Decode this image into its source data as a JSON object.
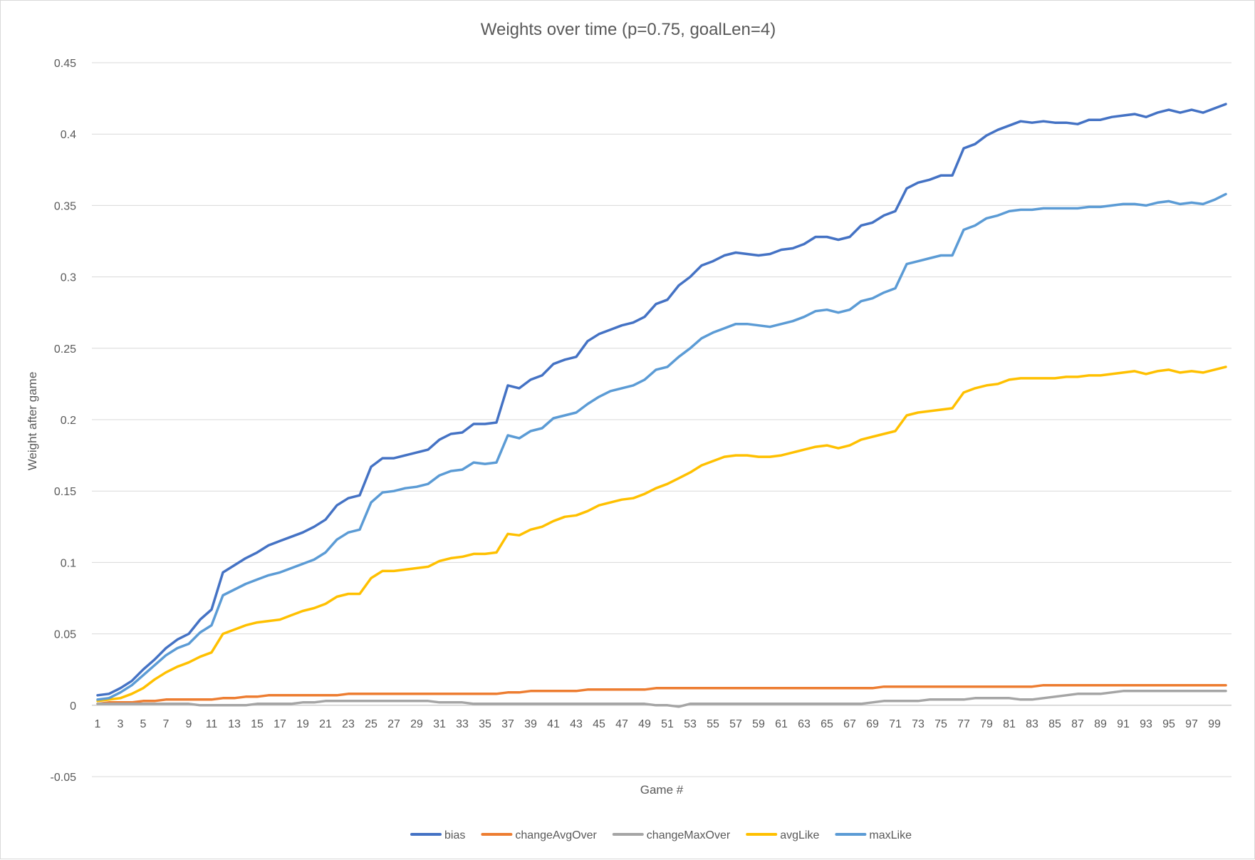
{
  "chart_data": {
    "type": "line",
    "title": "Weights over time (p=0.75, goalLen=4)",
    "xlabel": "Game #",
    "ylabel": "Weight after game",
    "ylim": [
      -0.05,
      0.45
    ],
    "y_ticks": [
      -0.05,
      0,
      0.05,
      0.1,
      0.15,
      0.2,
      0.25,
      0.3,
      0.35,
      0.4,
      0.45
    ],
    "y_tick_labels": [
      "-0.05",
      "0",
      "0.05",
      "0.1",
      "0.15",
      "0.2",
      "0.25",
      "0.3",
      "0.35",
      "0.4",
      "0.45"
    ],
    "x_tick_labels": [
      "1",
      "3",
      "5",
      "7",
      "9",
      "11",
      "13",
      "15",
      "17",
      "19",
      "21",
      "23",
      "25",
      "27",
      "29",
      "31",
      "33",
      "35",
      "37",
      "39",
      "41",
      "43",
      "45",
      "47",
      "49",
      "51",
      "53",
      "55",
      "57",
      "59",
      "61",
      "63",
      "65",
      "67",
      "69",
      "71",
      "73",
      "75",
      "77",
      "79",
      "81",
      "83",
      "85",
      "87",
      "89",
      "91",
      "93",
      "95",
      "97",
      "99"
    ],
    "grid": true,
    "legend_position": "bottom",
    "x": [
      1,
      2,
      3,
      4,
      5,
      6,
      7,
      8,
      9,
      10,
      11,
      12,
      13,
      14,
      15,
      16,
      17,
      18,
      19,
      20,
      21,
      22,
      23,
      24,
      25,
      26,
      27,
      28,
      29,
      30,
      31,
      32,
      33,
      34,
      35,
      36,
      37,
      38,
      39,
      40,
      41,
      42,
      43,
      44,
      45,
      46,
      47,
      48,
      49,
      50,
      51,
      52,
      53,
      54,
      55,
      56,
      57,
      58,
      59,
      60,
      61,
      62,
      63,
      64,
      65,
      66,
      67,
      68,
      69,
      70,
      71,
      72,
      73,
      74,
      75,
      76,
      77,
      78,
      79,
      80,
      81,
      82,
      83,
      84,
      85,
      86,
      87,
      88,
      89,
      90,
      91,
      92,
      93,
      94,
      95,
      96,
      97,
      98,
      99,
      100
    ],
    "series": [
      {
        "name": "bias",
        "color": "#4472C4",
        "values": [
          0.007,
          0.008,
          0.012,
          0.017,
          0.025,
          0.032,
          0.04,
          0.046,
          0.05,
          0.06,
          0.067,
          0.093,
          0.098,
          0.103,
          0.107,
          0.112,
          0.115,
          0.118,
          0.121,
          0.125,
          0.13,
          0.14,
          0.145,
          0.147,
          0.167,
          0.173,
          0.173,
          0.175,
          0.177,
          0.179,
          0.186,
          0.19,
          0.191,
          0.197,
          0.197,
          0.198,
          0.224,
          0.222,
          0.228,
          0.231,
          0.239,
          0.242,
          0.244,
          0.255,
          0.26,
          0.263,
          0.266,
          0.268,
          0.272,
          0.281,
          0.284,
          0.294,
          0.3,
          0.308,
          0.311,
          0.315,
          0.317,
          0.316,
          0.315,
          0.316,
          0.319,
          0.32,
          0.323,
          0.328,
          0.328,
          0.326,
          0.328,
          0.336,
          0.338,
          0.343,
          0.346,
          0.362,
          0.366,
          0.368,
          0.371,
          0.371,
          0.39,
          0.393,
          0.399,
          0.403,
          0.406,
          0.409,
          0.408,
          0.409,
          0.408,
          0.408,
          0.407,
          0.41,
          0.41,
          0.412,
          0.413,
          0.414,
          0.412,
          0.415,
          0.417,
          0.415,
          0.417,
          0.415,
          0.418,
          0.421
        ]
      },
      {
        "name": "changeAvgOver",
        "color": "#ED7D31",
        "values": [
          0.001,
          0.002,
          0.002,
          0.002,
          0.003,
          0.003,
          0.004,
          0.004,
          0.004,
          0.004,
          0.004,
          0.005,
          0.005,
          0.006,
          0.006,
          0.007,
          0.007,
          0.007,
          0.007,
          0.007,
          0.007,
          0.007,
          0.008,
          0.008,
          0.008,
          0.008,
          0.008,
          0.008,
          0.008,
          0.008,
          0.008,
          0.008,
          0.008,
          0.008,
          0.008,
          0.008,
          0.009,
          0.009,
          0.01,
          0.01,
          0.01,
          0.01,
          0.01,
          0.011,
          0.011,
          0.011,
          0.011,
          0.011,
          0.011,
          0.012,
          0.012,
          0.012,
          0.012,
          0.012,
          0.012,
          0.012,
          0.012,
          0.012,
          0.012,
          0.012,
          0.012,
          0.012,
          0.012,
          0.012,
          0.012,
          0.012,
          0.012,
          0.012,
          0.012,
          0.013,
          0.013,
          0.013,
          0.013,
          0.013,
          0.013,
          0.013,
          0.013,
          0.013,
          0.013,
          0.013,
          0.013,
          0.013,
          0.013,
          0.014,
          0.014,
          0.014,
          0.014,
          0.014,
          0.014,
          0.014,
          0.014,
          0.014,
          0.014,
          0.014,
          0.014,
          0.014,
          0.014,
          0.014,
          0.014,
          0.014
        ]
      },
      {
        "name": "changeMaxOver",
        "color": "#A5A5A5",
        "values": [
          0.001,
          0.001,
          0.001,
          0.001,
          0.001,
          0.001,
          0.001,
          0.001,
          0.001,
          0.0,
          0.0,
          0.0,
          0.0,
          0.0,
          0.001,
          0.001,
          0.001,
          0.001,
          0.002,
          0.002,
          0.003,
          0.003,
          0.003,
          0.003,
          0.003,
          0.003,
          0.003,
          0.003,
          0.003,
          0.003,
          0.002,
          0.002,
          0.002,
          0.001,
          0.001,
          0.001,
          0.001,
          0.001,
          0.001,
          0.001,
          0.001,
          0.001,
          0.001,
          0.001,
          0.001,
          0.001,
          0.001,
          0.001,
          0.001,
          0.0,
          0.0,
          -0.001,
          0.001,
          0.001,
          0.001,
          0.001,
          0.001,
          0.001,
          0.001,
          0.001,
          0.001,
          0.001,
          0.001,
          0.001,
          0.001,
          0.001,
          0.001,
          0.001,
          0.002,
          0.003,
          0.003,
          0.003,
          0.003,
          0.004,
          0.004,
          0.004,
          0.004,
          0.005,
          0.005,
          0.005,
          0.005,
          0.004,
          0.004,
          0.005,
          0.006,
          0.007,
          0.008,
          0.008,
          0.008,
          0.009,
          0.01,
          0.01,
          0.01,
          0.01,
          0.01,
          0.01,
          0.01,
          0.01,
          0.01,
          0.01
        ]
      },
      {
        "name": "avgLike",
        "color": "#FFC000",
        "values": [
          0.003,
          0.004,
          0.005,
          0.008,
          0.012,
          0.018,
          0.023,
          0.027,
          0.03,
          0.034,
          0.037,
          0.05,
          0.053,
          0.056,
          0.058,
          0.059,
          0.06,
          0.063,
          0.066,
          0.068,
          0.071,
          0.076,
          0.078,
          0.078,
          0.089,
          0.094,
          0.094,
          0.095,
          0.096,
          0.097,
          0.101,
          0.103,
          0.104,
          0.106,
          0.106,
          0.107,
          0.12,
          0.119,
          0.123,
          0.125,
          0.129,
          0.132,
          0.133,
          0.136,
          0.14,
          0.142,
          0.144,
          0.145,
          0.148,
          0.152,
          0.155,
          0.159,
          0.163,
          0.168,
          0.171,
          0.174,
          0.175,
          0.175,
          0.174,
          0.174,
          0.175,
          0.177,
          0.179,
          0.181,
          0.182,
          0.18,
          0.182,
          0.186,
          0.188,
          0.19,
          0.192,
          0.203,
          0.205,
          0.206,
          0.207,
          0.208,
          0.219,
          0.222,
          0.224,
          0.225,
          0.228,
          0.229,
          0.229,
          0.229,
          0.229,
          0.23,
          0.23,
          0.231,
          0.231,
          0.232,
          0.233,
          0.234,
          0.232,
          0.234,
          0.235,
          0.233,
          0.234,
          0.233,
          0.235,
          0.237
        ]
      },
      {
        "name": "maxLike",
        "color": "#5B9BD5",
        "values": [
          0.004,
          0.005,
          0.009,
          0.014,
          0.021,
          0.028,
          0.035,
          0.04,
          0.043,
          0.051,
          0.056,
          0.077,
          0.081,
          0.085,
          0.088,
          0.091,
          0.093,
          0.096,
          0.099,
          0.102,
          0.107,
          0.116,
          0.121,
          0.123,
          0.142,
          0.149,
          0.15,
          0.152,
          0.153,
          0.155,
          0.161,
          0.164,
          0.165,
          0.17,
          0.169,
          0.17,
          0.189,
          0.187,
          0.192,
          0.194,
          0.201,
          0.203,
          0.205,
          0.211,
          0.216,
          0.22,
          0.222,
          0.224,
          0.228,
          0.235,
          0.237,
          0.244,
          0.25,
          0.257,
          0.261,
          0.264,
          0.267,
          0.267,
          0.266,
          0.265,
          0.267,
          0.269,
          0.272,
          0.276,
          0.277,
          0.275,
          0.277,
          0.283,
          0.285,
          0.289,
          0.292,
          0.309,
          0.311,
          0.313,
          0.315,
          0.315,
          0.333,
          0.336,
          0.341,
          0.343,
          0.346,
          0.347,
          0.347,
          0.348,
          0.348,
          0.348,
          0.348,
          0.349,
          0.349,
          0.35,
          0.351,
          0.351,
          0.35,
          0.352,
          0.353,
          0.351,
          0.352,
          0.351,
          0.354,
          0.358
        ]
      }
    ]
  }
}
